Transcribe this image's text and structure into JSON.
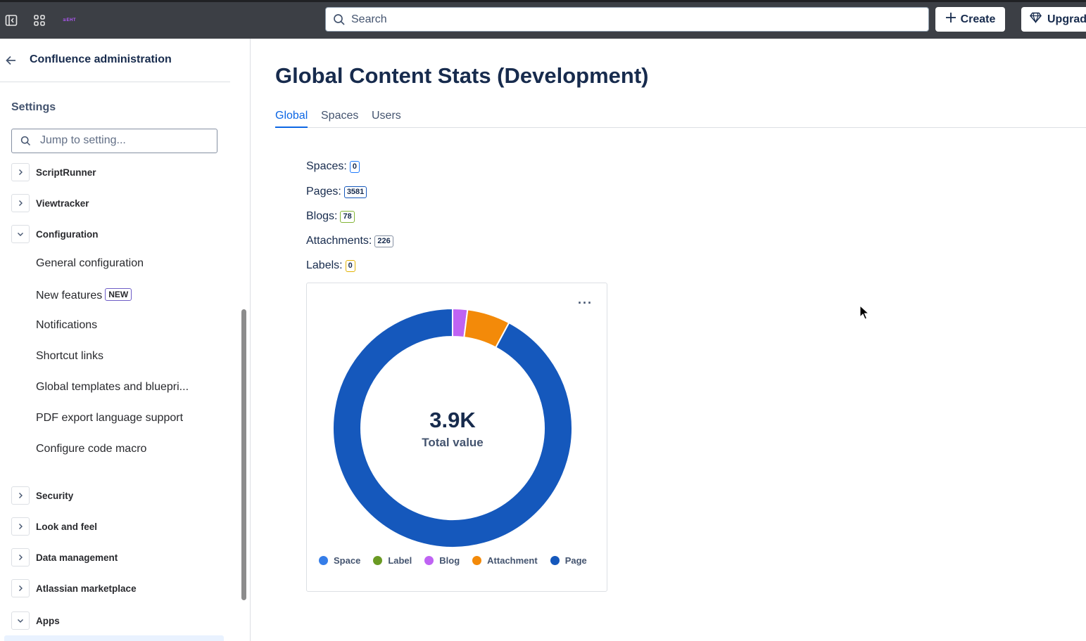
{
  "topbar": {
    "search_placeholder": "Search",
    "create_label": "Create",
    "upgrade_label": "Upgrade",
    "logo_text": "≋EHT",
    "icons": [
      "sidebar-toggle-icon",
      "app-switcher-icon",
      "logo-icon",
      "search-icon",
      "plus-icon",
      "gem-icon"
    ]
  },
  "sidebar": {
    "title": "Confluence administration",
    "settings_label": "Settings",
    "search_placeholder": "Jump to setting...",
    "groups_top": [
      {
        "label": "ScriptRunner",
        "expanded": false
      },
      {
        "label": "Viewtracker",
        "expanded": false
      },
      {
        "label": "Configuration",
        "expanded": true
      }
    ],
    "config_items": [
      {
        "label": "General configuration"
      },
      {
        "label": "New features",
        "badge": "NEW"
      },
      {
        "label": "Notifications"
      },
      {
        "label": "Shortcut links"
      },
      {
        "label": "Global templates and bluepri..."
      },
      {
        "label": "PDF export language support"
      },
      {
        "label": "Configure code macro"
      }
    ],
    "groups_bottom": [
      {
        "label": "Security",
        "expanded": false
      },
      {
        "label": "Look and feel",
        "expanded": false
      },
      {
        "label": "Data management",
        "expanded": false
      },
      {
        "label": "Atlassian marketplace",
        "expanded": false
      },
      {
        "label": "Apps",
        "expanded": true
      }
    ]
  },
  "main": {
    "title": "Global Content Stats (Development)",
    "tabs": [
      {
        "label": "Global",
        "active": true
      },
      {
        "label": "Spaces",
        "active": false
      },
      {
        "label": "Users",
        "active": false
      }
    ],
    "stats": [
      {
        "label": "Spaces:",
        "value": "0",
        "color": "#1d7afc"
      },
      {
        "label": "Pages:",
        "value": "3581",
        "color": "#1558bc"
      },
      {
        "label": "Blogs:",
        "value": "78",
        "color": "#82b536"
      },
      {
        "label": "Attachments:",
        "value": "226",
        "color": "#8590a2"
      },
      {
        "label": "Labels:",
        "value": "0",
        "color": "#e2b203"
      }
    ],
    "chart_more": "···"
  },
  "chart_data": {
    "type": "pie",
    "donut": true,
    "center_value": "3.9K",
    "center_label": "Total value",
    "categories": [
      "Space",
      "Label",
      "Blog",
      "Attachment",
      "Page"
    ],
    "values": [
      0,
      0,
      78,
      226,
      3581
    ],
    "colors": [
      "#357de8",
      "#6a9a23",
      "#bf63f3",
      "#f38a09",
      "#1558bc"
    ],
    "legend_position": "bottom"
  }
}
